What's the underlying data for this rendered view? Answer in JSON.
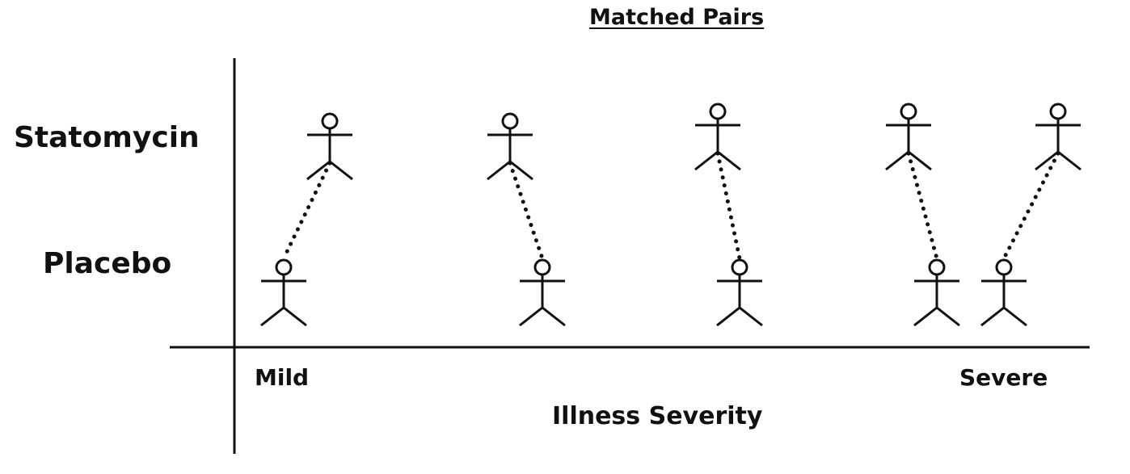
{
  "diagram": {
    "title": "Matched Pairs",
    "rows": {
      "top": "Statomycin",
      "bottom": "Placebo"
    },
    "x_axis": {
      "left_label": "Mild",
      "right_label": "Severe",
      "title": "Illness Severity"
    },
    "pairs": [
      {
        "statomycin_position": 1,
        "placebo_position": 1
      },
      {
        "statomycin_position": 2,
        "placebo_position": 2
      },
      {
        "statomycin_position": 3,
        "placebo_position": 3
      },
      {
        "statomycin_position": 4,
        "placebo_position": 4
      },
      {
        "statomycin_position": 5,
        "placebo_position": 5
      }
    ],
    "colors": {
      "ink": "#111111",
      "background": "#ffffff"
    }
  }
}
